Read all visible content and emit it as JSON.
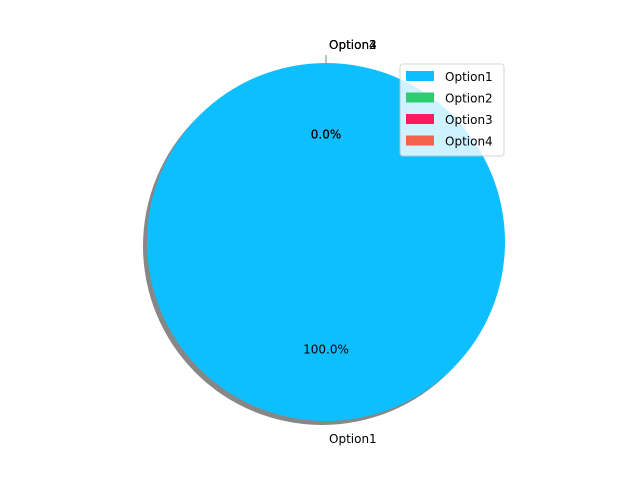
{
  "chart_data": {
    "type": "pie",
    "labels": [
      "Option1",
      "Option2",
      "Option3",
      "Option4"
    ],
    "values": [
      100.0,
      0.0,
      0.0,
      0.0
    ],
    "percent_labels": [
      "100.0%",
      "0.0%",
      "0.0%",
      "0.0%"
    ],
    "colors": [
      "#0dbfff",
      "#2ecc71",
      "#ff1a5e",
      "#f2624a"
    ],
    "shadow": true,
    "legend": {
      "position": "top-right",
      "entries": [
        "Option1",
        "Option2",
        "Option3",
        "Option4"
      ]
    }
  }
}
